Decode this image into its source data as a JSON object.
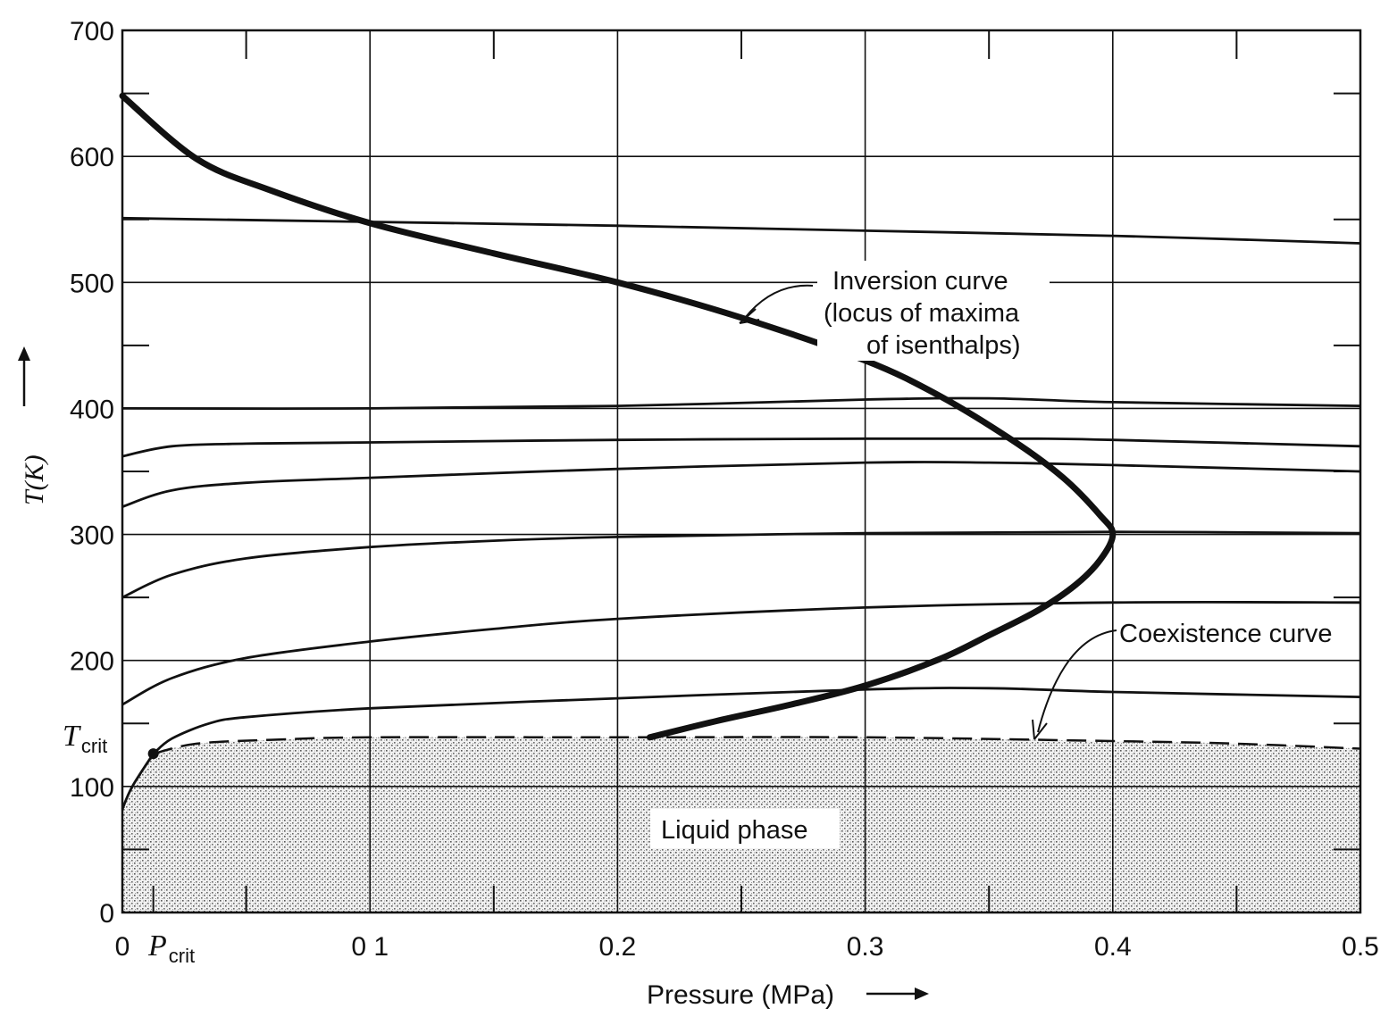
{
  "chart_data": {
    "type": "line",
    "xlabel": "Pressure (MPa)",
    "ylabel": "T(K)",
    "xlim": [
      0,
      0.5
    ],
    "ylim": [
      0,
      700
    ],
    "x_ticks": [
      {
        "value": 0,
        "label": "0"
      },
      {
        "value": 0.1,
        "label": "0 1"
      },
      {
        "value": 0.2,
        "label": "0.2"
      },
      {
        "value": 0.3,
        "label": "0.3"
      },
      {
        "value": 0.4,
        "label": "0.4"
      },
      {
        "value": 0.5,
        "label": "0.5"
      }
    ],
    "y_ticks": [
      {
        "value": 0,
        "label": "0"
      },
      {
        "value": 100,
        "label": "100"
      },
      {
        "value": 200,
        "label": "200"
      },
      {
        "value": 300,
        "label": "300"
      },
      {
        "value": 400,
        "label": "400"
      },
      {
        "value": 500,
        "label": "500"
      },
      {
        "value": 600,
        "label": "600"
      },
      {
        "value": 700,
        "label": "700"
      }
    ],
    "grid": true,
    "special_labels": {
      "tcrit_main": "T",
      "tcrit_sub": "crit",
      "pcrit_main": "P",
      "pcrit_sub": "crit",
      "tcrit_value": 126,
      "pcrit_value": 0.0125
    },
    "annotations": {
      "inversion": [
        "Inversion curve",
        "(locus of maxima",
        "of isenthalps)"
      ],
      "coexistence": "Coexistence curve",
      "liquid": "Liquid phase"
    },
    "isenthalps": [
      {
        "x": [
          0,
          0.1,
          0.2,
          0.3,
          0.4,
          0.5
        ],
        "y": [
          551,
          548,
          545,
          541,
          537,
          531
        ]
      },
      {
        "x": [
          0,
          0.1,
          0.2,
          0.3,
          0.35,
          0.4,
          0.5
        ],
        "y": [
          400,
          400,
          402,
          407,
          408,
          405,
          402
        ]
      },
      {
        "x": [
          0,
          0.02,
          0.05,
          0.1,
          0.2,
          0.3,
          0.37,
          0.4,
          0.5
        ],
        "y": [
          362,
          370,
          372,
          373,
          375,
          376,
          376,
          375,
          370
        ]
      },
      {
        "x": [
          0,
          0.02,
          0.05,
          0.1,
          0.2,
          0.3,
          0.35,
          0.4,
          0.5
        ],
        "y": [
          322,
          335,
          341,
          345,
          352,
          357,
          357,
          355,
          350
        ]
      },
      {
        "x": [
          0,
          0.02,
          0.05,
          0.1,
          0.15,
          0.2,
          0.3,
          0.4,
          0.5
        ],
        "y": [
          250,
          268,
          281,
          290,
          295,
          298,
          301,
          302,
          301
        ]
      },
      {
        "x": [
          0,
          0.02,
          0.05,
          0.1,
          0.15,
          0.2,
          0.3,
          0.4,
          0.5
        ],
        "y": [
          165,
          186,
          202,
          215,
          225,
          233,
          242,
          246,
          246
        ]
      },
      {
        "x": [
          0.0125,
          0.02,
          0.035,
          0.05,
          0.1,
          0.2,
          0.3,
          0.35,
          0.4,
          0.5
        ],
        "y": [
          126,
          138,
          150,
          155,
          162,
          170,
          177,
          178,
          175,
          171
        ]
      }
    ],
    "inversion_curve": {
      "x": [
        0,
        0.03,
        0.06,
        0.1,
        0.15,
        0.2,
        0.25,
        0.3,
        0.33,
        0.36,
        0.38,
        0.395,
        0.4,
        0.395,
        0.385,
        0.37,
        0.35,
        0.33,
        0.3,
        0.27,
        0.24,
        0.213
      ],
      "y": [
        648,
        598,
        573,
        547,
        523,
        500,
        472,
        438,
        410,
        374,
        345,
        315,
        300,
        280,
        260,
        240,
        220,
        201,
        180,
        165,
        152,
        139
      ]
    },
    "coexistence_curve": {
      "x": [
        0.0125,
        0.03,
        0.06,
        0.1,
        0.2,
        0.3,
        0.4,
        0.45,
        0.5
      ],
      "y": [
        126,
        134,
        137,
        139,
        139,
        139,
        136,
        134,
        130
      ]
    },
    "critical_low_branch": {
      "x": [
        0,
        0.004,
        0.0125
      ],
      "y": [
        82,
        100,
        126
      ]
    }
  }
}
